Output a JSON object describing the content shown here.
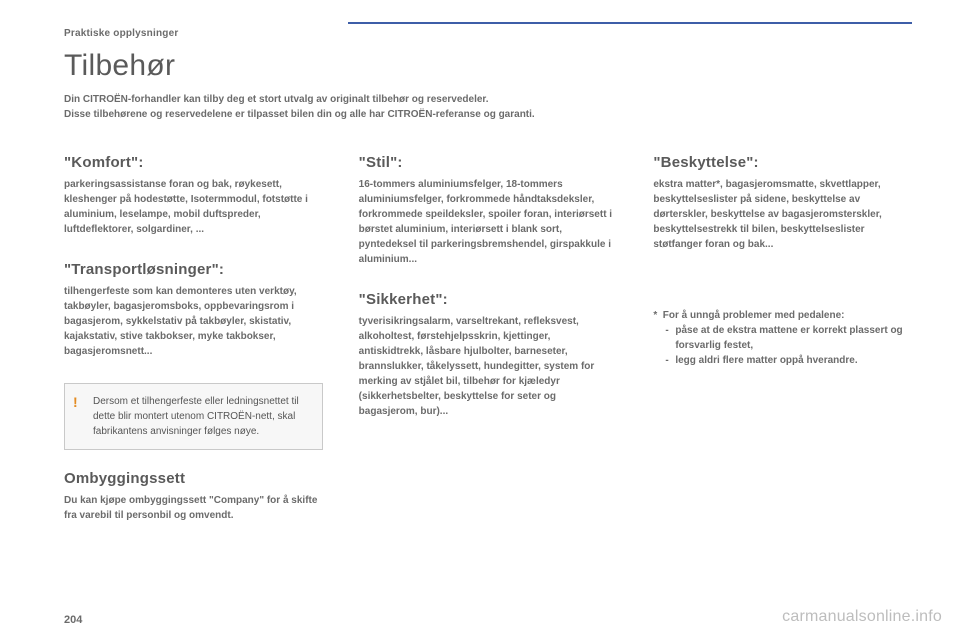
{
  "category": "Praktiske opplysninger",
  "page_title": "Tilbehør",
  "intro_line1": "Din CITROËN-forhandler kan tilby deg et stort utvalg av originalt tilbehør og reservedeler.",
  "intro_line2": "Disse tilbehørene og reservedelene er tilpasset bilen din og alle har CITROËN-referanse og garanti.",
  "col1": {
    "s1_heading": "\"Komfort\":",
    "s1_body": "parkeringsassistanse foran og bak, røykesett, kleshenger på hodestøtte, Isotermmodul, fotstøtte i aluminium, leselampe, mobil duftspreder, luftdeflektorer, solgardiner, ...",
    "s2_heading": "\"Transportløsninger\":",
    "s2_body": "tilhengerfeste som kan demonteres uten verktøy, takbøyler, bagasjeromsboks, oppbevaringsrom i bagasjerom, sykkelstativ på takbøyler, skistativ, kajakstativ, stive takbokser, myke takbokser, bagasjeromsnett...",
    "warning_body": "Dersom et tilhengerfeste eller ledningsnettet til dette blir montert utenom CITROËN-nett, skal fabrikantens anvisninger følges nøye.",
    "s3_heading": "Ombyggingssett",
    "s3_body": "Du kan kjøpe ombyggingssett \"Company\" for å skifte fra varebil til personbil og omvendt."
  },
  "col2": {
    "s1_heading": "\"Stil\":",
    "s1_body": "16-tommers aluminiumsfelger, 18-tommers aluminiumsfelger, forkrommede håndtaksdeksler, forkrommede speildeksler, spoiler foran, interiørsett i børstet aluminium, interiørsett i blank sort, pyntedeksel til parkeringsbremshendel, girspakkule i aluminium...",
    "s2_heading": "\"Sikkerhet\":",
    "s2_body": "tyverisikringsalarm, varseltrekant, refleksvest, alkoholtest, førstehjelpsskrin, kjettinger, antiskidtrekk, låsbare hjulbolter, barneseter, brannslukker, tåkelyssett, hundegitter, system for merking av stjålet bil, tilbehør for kjæledyr (sikkerhetsbelter, beskyttelse for seter og bagasjerom, bur)..."
  },
  "col3": {
    "s1_heading": "\"Beskyttelse\":",
    "s1_body": "ekstra matter*, bagasjeromsmatte, skvettlapper, beskyttelseslister på sidene, beskyttelse av dørterskler, beskyttelse av bagasjeromsterskler, beskyttelsestrekk til bilen, beskyttelseslister støtfanger foran og bak...",
    "footnote_lead": "For å unngå problemer med pedalene:",
    "footnote_li1": "påse at de ekstra mattene er korrekt plassert og forsvarlig festet,",
    "footnote_li2": "legg aldri flere matter oppå hverandre."
  },
  "page_number": "204",
  "watermark": "carmanualsonline.info"
}
